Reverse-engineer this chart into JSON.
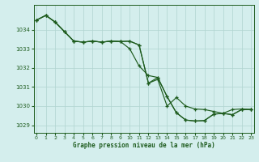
{
  "title": "Graphe pression niveau de la mer (hPa)",
  "background_color": "#d4eeed",
  "grid_color": "#b0d4d0",
  "line_color": "#1e5c1e",
  "xlim": [
    -0.3,
    23.3
  ],
  "ylim": [
    1028.6,
    1035.3
  ],
  "yticks": [
    1029,
    1030,
    1031,
    1032,
    1033,
    1034
  ],
  "xticks": [
    0,
    1,
    2,
    3,
    4,
    5,
    6,
    7,
    8,
    9,
    10,
    11,
    12,
    13,
    14,
    15,
    16,
    17,
    18,
    19,
    20,
    21,
    22,
    23
  ],
  "series1": [
    1034.5,
    1034.75,
    1034.4,
    1033.9,
    1033.4,
    1033.35,
    1033.4,
    1033.35,
    1033.4,
    1033.38,
    1033.4,
    1033.2,
    1031.2,
    1031.4,
    1030.0,
    1030.45,
    1030.0,
    1029.85,
    1029.82,
    1029.72,
    1029.62,
    1029.82,
    1029.85,
    1029.82
  ],
  "series2": [
    1034.5,
    1034.75,
    1034.4,
    1033.9,
    1033.4,
    1033.35,
    1033.4,
    1033.35,
    1033.4,
    1033.38,
    1033.4,
    1033.2,
    1031.2,
    1031.5,
    1030.5,
    1029.65,
    1029.27,
    1029.22,
    1029.24,
    1029.58,
    1029.62,
    1029.55,
    1029.82,
    1029.82
  ],
  "series3": [
    1034.5,
    1034.75,
    1034.4,
    1033.9,
    1033.4,
    1033.35,
    1033.4,
    1033.35,
    1033.4,
    1033.38,
    1033.0,
    1032.1,
    1031.6,
    1031.5,
    1030.5,
    1029.65,
    1029.27,
    1029.22,
    1029.24,
    1029.58,
    1029.62,
    1029.55,
    1029.82,
    1029.82
  ]
}
